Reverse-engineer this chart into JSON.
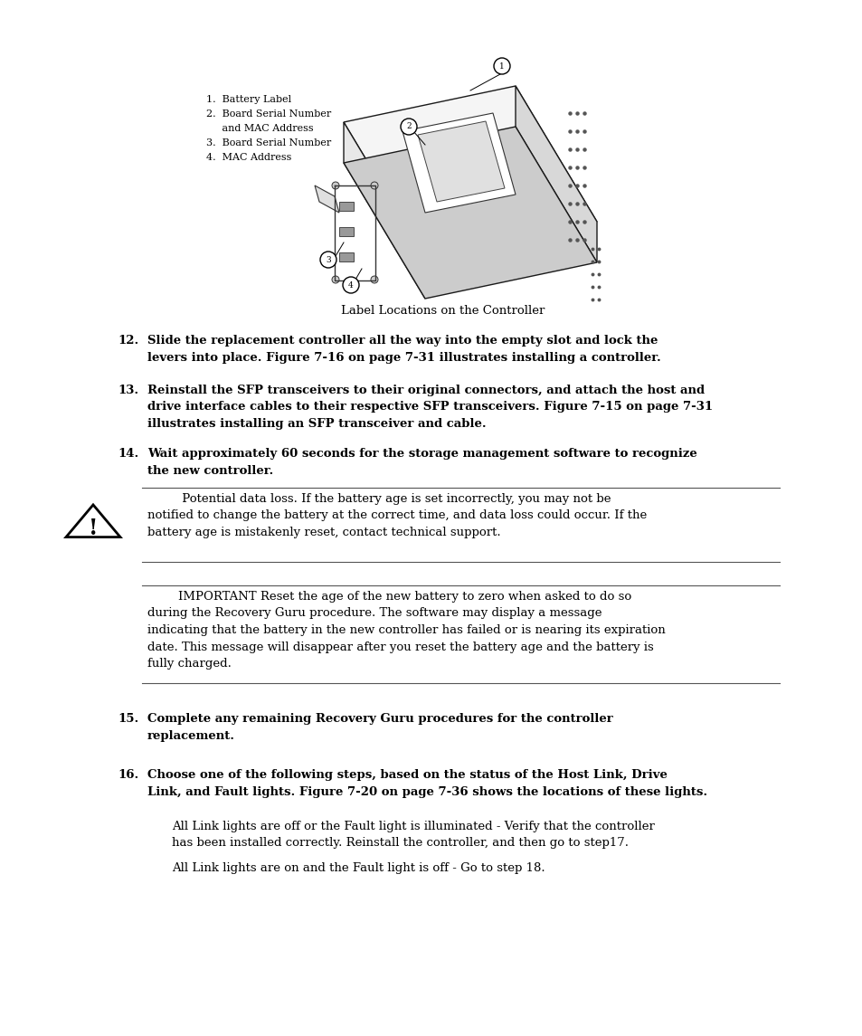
{
  "bg_color": "#ffffff",
  "image_caption": "Label Locations on the Controller",
  "legend_lines": [
    "1.  Battery Label",
    "2.  Board Serial Number",
    "     and MAC Address",
    "3.  Board Serial Number",
    "4.  MAC Address"
  ],
  "step12_num": "12.",
  "step12_line1": "Slide the replacement controller all the way into the empty slot and lock the",
  "step12_line2": "levers into place. Figure 7-16 on page 7-31 illustrates installing a controller.",
  "step13_num": "13.",
  "step13_line1": "Reinstall the SFP transceivers to their original connectors, and attach the host and",
  "step13_line2": "drive interface cables to their respective SFP transceivers. Figure 7-15 on page 7-31",
  "step13_line3": "illustrates installing an SFP transceiver and cable.",
  "step14_num": "14.",
  "step14_line1": "Wait approximately 60 seconds for the storage management software to recognize",
  "step14_line2": "the new controller.",
  "caution_line1": "         Potential data loss. If the battery age is set incorrectly, you may not be",
  "caution_line2": "notified to change the battery at the correct time, and data loss could occur. If the",
  "caution_line3": "battery age is mistakenly reset, contact technical support.",
  "imp_line1": "        IMPORTANT Reset the age of the new battery to zero when asked to do so",
  "imp_line2": "during the Recovery Guru procedure. The software may display a message",
  "imp_line3": "indicating that the battery in the new controller has failed or is nearing its expiration",
  "imp_line4": "date. This message will disappear after you reset the battery age and the battery is",
  "imp_line5": "fully charged.",
  "step15_num": "15.",
  "step15_line1": "Complete any remaining Recovery Guru procedures for the controller",
  "step15_line2": "replacement.",
  "step16_num": "16.",
  "step16_line1": "Choose one of the following steps, based on the status of the Host Link, Drive",
  "step16_line2": "Link, and Fault lights. Figure 7-20 on page 7-36 shows the locations of these lights.",
  "sub16_line1": "All Link lights are off or the Fault light is illuminated - Verify that the controller",
  "sub16_line2": "has been installed correctly. Reinstall the controller, and then go to step17.",
  "sub16_line3": "All Link lights are on and the Fault light is off - Go to step 18.",
  "font_size": 9.5,
  "bold_font_size": 9.5,
  "small_font_size": 8.0,
  "caption_font_size": 9.5
}
